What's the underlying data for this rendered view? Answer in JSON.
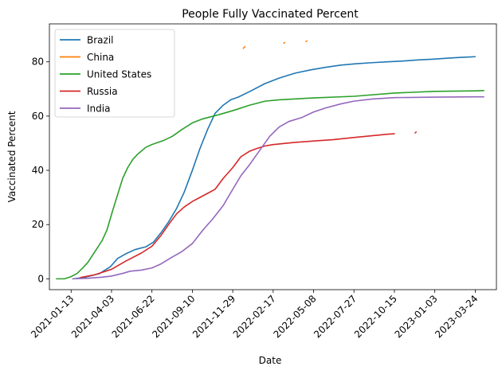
{
  "chart_data": {
    "type": "line",
    "title": "People Fully Vaccinated Percent",
    "xlabel": "Date",
    "ylabel": "Vaccinated Percent",
    "xlim": [
      "2020-12-01",
      "2023-05-05"
    ],
    "ylim": [
      -4,
      94
    ],
    "x_ticks": [
      "2021-01-13",
      "2021-04-03",
      "2021-06-22",
      "2021-09-10",
      "2021-11-29",
      "2022-02-17",
      "2022-05-08",
      "2022-07-27",
      "2022-10-15",
      "2023-01-03",
      "2023-03-24"
    ],
    "y_ticks": [
      0,
      20,
      40,
      60,
      80
    ],
    "grid": false,
    "legend_position": "upper left",
    "series": [
      {
        "name": "Brazil",
        "color": "#1f77b4",
        "points": [
          [
            "2021-01-18",
            0
          ],
          [
            "2021-02-10",
            0.6
          ],
          [
            "2021-03-10",
            1.9
          ],
          [
            "2021-04-01",
            4.5
          ],
          [
            "2021-04-15",
            7.5
          ],
          [
            "2021-05-01",
            9.2
          ],
          [
            "2021-05-20",
            10.8
          ],
          [
            "2021-06-10",
            11.8
          ],
          [
            "2021-06-25",
            13.5
          ],
          [
            "2021-07-10",
            17
          ],
          [
            "2021-07-25",
            21
          ],
          [
            "2021-08-10",
            26
          ],
          [
            "2021-08-25",
            32
          ],
          [
            "2021-09-10",
            40
          ],
          [
            "2021-09-25",
            48
          ],
          [
            "2021-10-10",
            55
          ],
          [
            "2021-10-25",
            61
          ],
          [
            "2021-11-10",
            64
          ],
          [
            "2021-11-25",
            66
          ],
          [
            "2021-12-10",
            67
          ],
          [
            "2022-01-01",
            69
          ],
          [
            "2022-02-01",
            72
          ],
          [
            "2022-03-01",
            74
          ],
          [
            "2022-04-01",
            75.8
          ],
          [
            "2022-05-01",
            77
          ],
          [
            "2022-06-01",
            78
          ],
          [
            "2022-07-01",
            78.8
          ],
          [
            "2022-08-01",
            79.3
          ],
          [
            "2022-09-01",
            79.7
          ],
          [
            "2022-10-01",
            80
          ],
          [
            "2022-11-01",
            80.3
          ],
          [
            "2022-12-01",
            80.7
          ],
          [
            "2023-01-01",
            81
          ],
          [
            "2023-02-01",
            81.4
          ],
          [
            "2023-03-01",
            81.7
          ],
          [
            "2023-03-24",
            81.9
          ]
        ]
      },
      {
        "name": "China",
        "color": "#ff7f0e",
        "points": [],
        "segments": [
          [
            [
              "2021-12-20",
              85
            ],
            [
              "2021-12-23",
              85.6
            ]
          ],
          [
            [
              "2022-03-10",
              86.9
            ],
            [
              "2022-03-12",
              87.1
            ]
          ],
          [
            [
              "2022-04-23",
              87.5
            ],
            [
              "2022-04-25",
              87.7
            ]
          ]
        ]
      },
      {
        "name": "United States",
        "color": "#2ca02c",
        "points": [
          [
            "2020-12-15",
            0
          ],
          [
            "2020-12-31",
            0
          ],
          [
            "2021-01-13",
            0.8
          ],
          [
            "2021-01-25",
            2
          ],
          [
            "2021-02-05",
            4
          ],
          [
            "2021-02-15",
            6
          ],
          [
            "2021-03-01",
            10
          ],
          [
            "2021-03-15",
            14
          ],
          [
            "2021-03-25",
            18
          ],
          [
            "2021-04-05",
            25
          ],
          [
            "2021-04-15",
            31
          ],
          [
            "2021-04-25",
            37
          ],
          [
            "2021-05-05",
            41
          ],
          [
            "2021-05-15",
            44
          ],
          [
            "2021-05-25",
            46
          ],
          [
            "2021-06-10",
            48.5
          ],
          [
            "2021-06-22",
            49.5
          ],
          [
            "2021-07-15",
            51
          ],
          [
            "2021-08-01",
            52.5
          ],
          [
            "2021-08-20",
            55
          ],
          [
            "2021-09-10",
            57.5
          ],
          [
            "2021-10-01",
            59
          ],
          [
            "2021-11-01",
            60.5
          ],
          [
            "2021-11-29",
            62
          ],
          [
            "2022-01-01",
            64
          ],
          [
            "2022-02-01",
            65.5
          ],
          [
            "2022-03-01",
            66
          ],
          [
            "2022-05-08",
            66.7
          ],
          [
            "2022-07-27",
            67.3
          ],
          [
            "2022-10-15",
            68.5
          ],
          [
            "2023-01-03",
            69.1
          ],
          [
            "2023-03-24",
            69.3
          ],
          [
            "2023-04-10",
            69.4
          ]
        ]
      },
      {
        "name": "Russia",
        "color": "#d62728",
        "points": [
          [
            "2021-02-01",
            0.5
          ],
          [
            "2021-03-01",
            1.5
          ],
          [
            "2021-04-03",
            3.5
          ],
          [
            "2021-05-01",
            6.5
          ],
          [
            "2021-06-01",
            9.5
          ],
          [
            "2021-06-22",
            12
          ],
          [
            "2021-07-10",
            16
          ],
          [
            "2021-07-25",
            20
          ],
          [
            "2021-08-10",
            24
          ],
          [
            "2021-08-25",
            26.5
          ],
          [
            "2021-09-10",
            28.5
          ],
          [
            "2021-09-25",
            30
          ],
          [
            "2021-10-10",
            31.5
          ],
          [
            "2021-10-25",
            33
          ],
          [
            "2021-11-10",
            37
          ],
          [
            "2021-11-29",
            41
          ],
          [
            "2021-12-15",
            45
          ],
          [
            "2022-01-01",
            47
          ],
          [
            "2022-01-15",
            48
          ],
          [
            "2022-02-01",
            49
          ],
          [
            "2022-02-17",
            49.5
          ],
          [
            "2022-04-01",
            50.3
          ],
          [
            "2022-05-08",
            50.8
          ],
          [
            "2022-06-15",
            51.3
          ],
          [
            "2022-08-01",
            52.2
          ],
          [
            "2022-09-15",
            53
          ],
          [
            "2022-10-01",
            53.3
          ],
          [
            "2022-10-15",
            53.5
          ]
        ],
        "segments": [
          [
            [
              "2022-11-25",
              53.8
            ],
            [
              "2022-11-27",
              54.1
            ]
          ]
        ]
      },
      {
        "name": "India",
        "color": "#9467bd",
        "points": [
          [
            "2021-01-16",
            0
          ],
          [
            "2021-02-15",
            0.2
          ],
          [
            "2021-03-15",
            0.6
          ],
          [
            "2021-04-03",
            1
          ],
          [
            "2021-04-25",
            2
          ],
          [
            "2021-05-10",
            2.8
          ],
          [
            "2021-06-01",
            3.2
          ],
          [
            "2021-06-22",
            4
          ],
          [
            "2021-07-10",
            5.5
          ],
          [
            "2021-08-01",
            8
          ],
          [
            "2021-08-20",
            10
          ],
          [
            "2021-09-10",
            13
          ],
          [
            "2021-10-01",
            18
          ],
          [
            "2021-10-20",
            22
          ],
          [
            "2021-11-10",
            27
          ],
          [
            "2021-11-29",
            33
          ],
          [
            "2021-12-15",
            38
          ],
          [
            "2022-01-01",
            42
          ],
          [
            "2022-01-20",
            47
          ],
          [
            "2022-02-10",
            52.5
          ],
          [
            "2022-03-01",
            56
          ],
          [
            "2022-03-20",
            58
          ],
          [
            "2022-04-15",
            59.5
          ],
          [
            "2022-05-08",
            61.5
          ],
          [
            "2022-06-01",
            63
          ],
          [
            "2022-07-01",
            64.5
          ],
          [
            "2022-07-27",
            65.5
          ],
          [
            "2022-09-01",
            66.3
          ],
          [
            "2022-10-15",
            66.8
          ],
          [
            "2023-01-03",
            67
          ],
          [
            "2023-03-24",
            67.1
          ],
          [
            "2023-04-10",
            67.1
          ]
        ]
      }
    ]
  }
}
